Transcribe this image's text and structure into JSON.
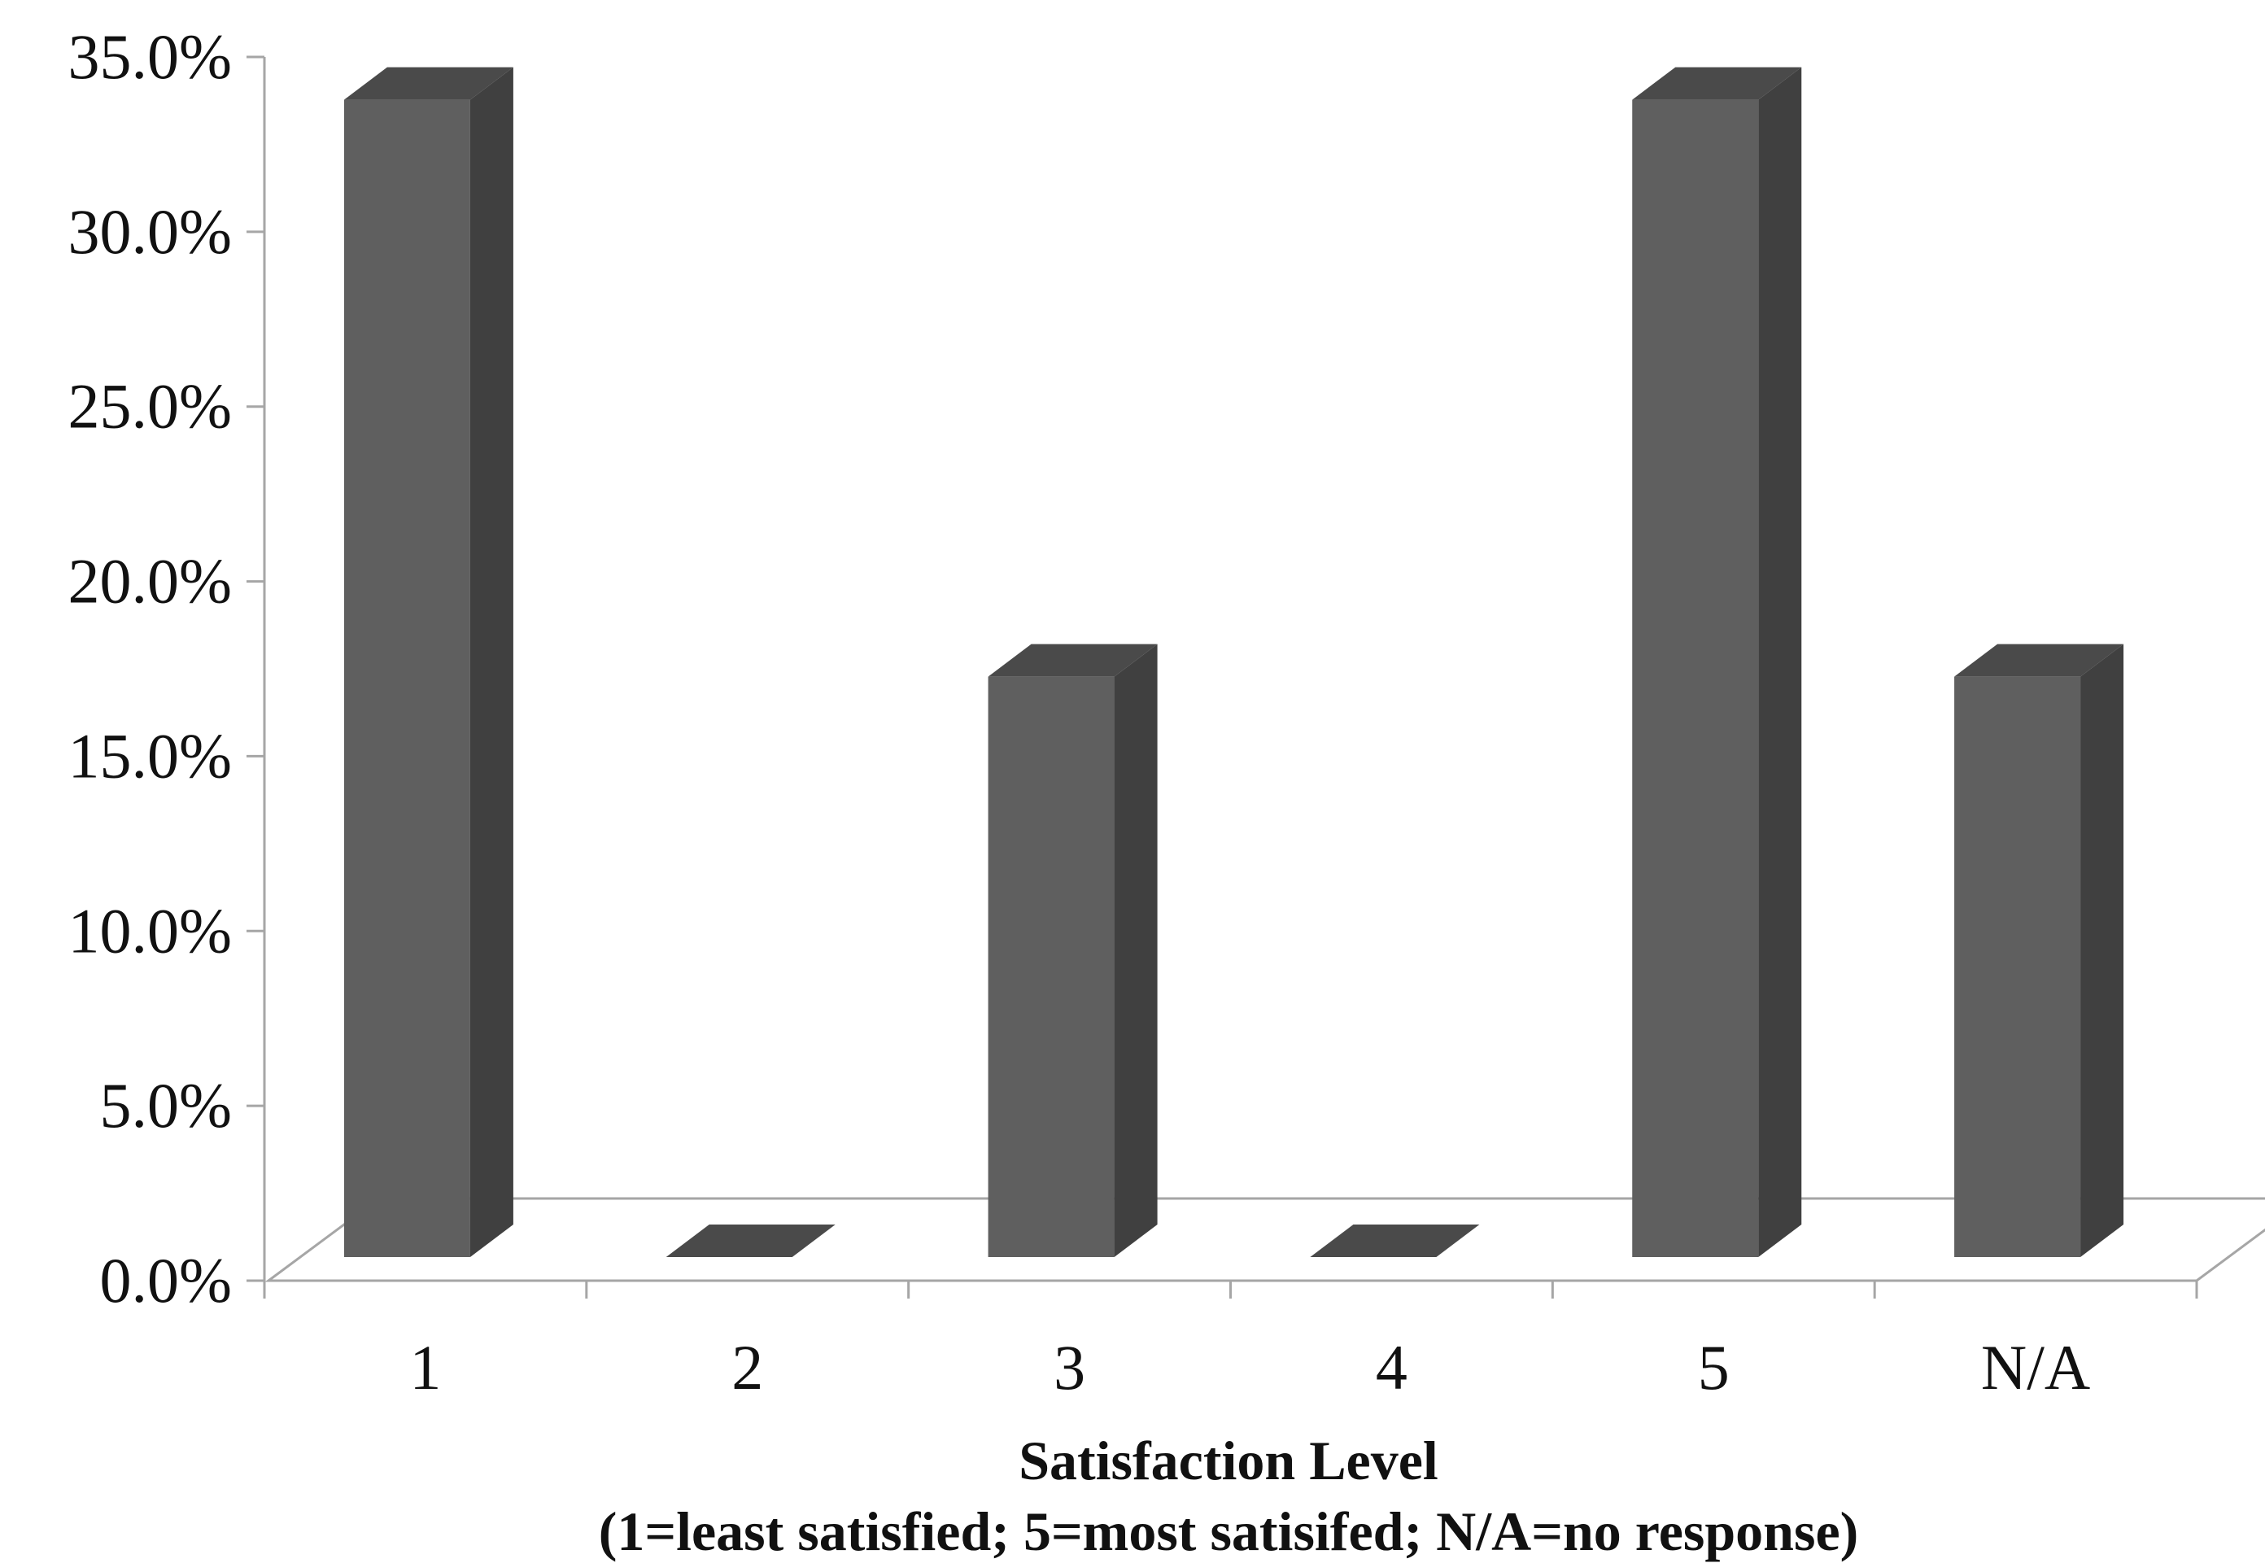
{
  "chart_data": {
    "type": "bar",
    "style": "3d-column",
    "categories": [
      "1",
      "2",
      "3",
      "4",
      "5",
      "N/A"
    ],
    "values": [
      33.3,
      0.0,
      16.7,
      0.0,
      33.3,
      16.7
    ],
    "title": "",
    "xlabel_line1": "Satisfaction Level",
    "xlabel_line2": "(1=least satisfied; 5=most satisifed; N/A=no response)",
    "ylabel": "",
    "ylim": [
      0,
      35
    ],
    "yticks": [
      "0.0%",
      "5.0%",
      "10.0%",
      "15.0%",
      "20.0%",
      "25.0%",
      "30.0%",
      "35.0%"
    ],
    "grid": false,
    "legend": "none",
    "colors": {
      "bar_front": "#5f5f5f",
      "bar_side": "#404040",
      "bar_top": "#4a4a4a",
      "axis": "#a6a6a6"
    }
  }
}
